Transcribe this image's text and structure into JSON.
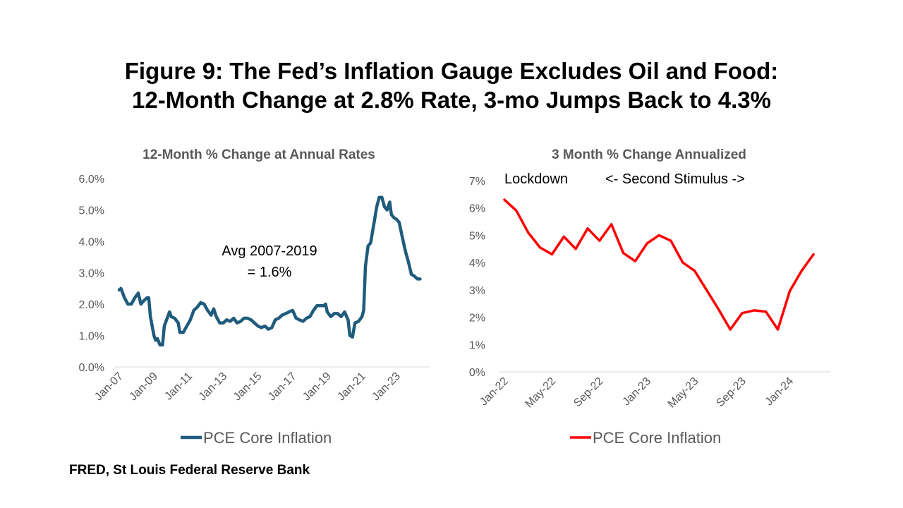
{
  "title": {
    "line1": "Figure 9: The Fed’s Inflation Gauge Excludes Oil and Food:",
    "line2": "12-Month Change at 2.8% Rate, 3-mo Jumps Back to 4.3%"
  },
  "source": "FRED, St Louis Federal Reserve Bank",
  "chart_data": [
    {
      "type": "line",
      "title": "12-Month % Change at Annual Rates",
      "xlabel": "",
      "ylabel": "",
      "ylim": [
        0,
        6
      ],
      "y_ticks": [
        "0.0%",
        "1.0%",
        "2.0%",
        "3.0%",
        "4.0%",
        "5.0%",
        "6.0%"
      ],
      "x_range": [
        2007.0,
        2024.7
      ],
      "x_tick_labels": [
        {
          "label": "Jan-07",
          "x": 2007
        },
        {
          "label": "Jan-09",
          "x": 2009
        },
        {
          "label": "Jan-11",
          "x": 2011
        },
        {
          "label": "Jan-13",
          "x": 2013
        },
        {
          "label": "Jan-15",
          "x": 2015
        },
        {
          "label": "Jan-17",
          "x": 2017
        },
        {
          "label": "Jan-19",
          "x": 2019
        },
        {
          "label": "Jan-21",
          "x": 2021
        },
        {
          "label": "Jan-23",
          "x": 2023
        }
      ],
      "annotation": [
        "Avg 2007-2019",
        "= 1.6%"
      ],
      "series": [
        {
          "name": "PCE Core Inflation",
          "color": "#1f5b7c",
          "points": [
            [
              2007.0,
              2.45
            ],
            [
              2007.1,
              2.5
            ],
            [
              2007.3,
              2.2
            ],
            [
              2007.5,
              2.0
            ],
            [
              2007.7,
              2.0
            ],
            [
              2007.9,
              2.2
            ],
            [
              2008.1,
              2.35
            ],
            [
              2008.25,
              2.0
            ],
            [
              2008.4,
              2.1
            ],
            [
              2008.6,
              2.2
            ],
            [
              2008.7,
              2.2
            ],
            [
              2008.8,
              1.6
            ],
            [
              2008.9,
              1.3
            ],
            [
              2009.0,
              1.0
            ],
            [
              2009.1,
              0.85
            ],
            [
              2009.2,
              0.9
            ],
            [
              2009.35,
              0.7
            ],
            [
              2009.5,
              0.7
            ],
            [
              2009.6,
              1.3
            ],
            [
              2009.8,
              1.6
            ],
            [
              2009.9,
              1.75
            ],
            [
              2010.0,
              1.6
            ],
            [
              2010.2,
              1.55
            ],
            [
              2010.4,
              1.4
            ],
            [
              2010.5,
              1.1
            ],
            [
              2010.7,
              1.1
            ],
            [
              2010.9,
              1.3
            ],
            [
              2011.1,
              1.5
            ],
            [
              2011.3,
              1.8
            ],
            [
              2011.5,
              1.9
            ],
            [
              2011.7,
              2.05
            ],
            [
              2011.9,
              2.0
            ],
            [
              2012.1,
              1.8
            ],
            [
              2012.3,
              1.65
            ],
            [
              2012.45,
              1.85
            ],
            [
              2012.6,
              1.6
            ],
            [
              2012.8,
              1.4
            ],
            [
              2013.0,
              1.4
            ],
            [
              2013.2,
              1.5
            ],
            [
              2013.4,
              1.45
            ],
            [
              2013.6,
              1.55
            ],
            [
              2013.8,
              1.4
            ],
            [
              2014.0,
              1.45
            ],
            [
              2014.2,
              1.55
            ],
            [
              2014.4,
              1.55
            ],
            [
              2014.6,
              1.5
            ],
            [
              2014.8,
              1.4
            ],
            [
              2015.0,
              1.3
            ],
            [
              2015.2,
              1.25
            ],
            [
              2015.4,
              1.3
            ],
            [
              2015.6,
              1.2
            ],
            [
              2015.8,
              1.25
            ],
            [
              2016.0,
              1.5
            ],
            [
              2016.2,
              1.55
            ],
            [
              2016.4,
              1.65
            ],
            [
              2016.6,
              1.7
            ],
            [
              2016.8,
              1.75
            ],
            [
              2017.0,
              1.8
            ],
            [
              2017.2,
              1.55
            ],
            [
              2017.4,
              1.5
            ],
            [
              2017.6,
              1.45
            ],
            [
              2017.8,
              1.55
            ],
            [
              2018.0,
              1.6
            ],
            [
              2018.2,
              1.8
            ],
            [
              2018.4,
              1.95
            ],
            [
              2018.6,
              1.95
            ],
            [
              2018.8,
              1.95
            ],
            [
              2018.9,
              2.0
            ],
            [
              2019.0,
              1.75
            ],
            [
              2019.2,
              1.6
            ],
            [
              2019.4,
              1.7
            ],
            [
              2019.6,
              1.7
            ],
            [
              2019.8,
              1.6
            ],
            [
              2020.0,
              1.75
            ],
            [
              2020.2,
              1.5
            ],
            [
              2020.3,
              1.0
            ],
            [
              2020.45,
              0.95
            ],
            [
              2020.6,
              1.4
            ],
            [
              2020.8,
              1.45
            ],
            [
              2021.0,
              1.6
            ],
            [
              2021.1,
              1.8
            ],
            [
              2021.2,
              3.2
            ],
            [
              2021.35,
              3.85
            ],
            [
              2021.5,
              3.95
            ],
            [
              2021.7,
              4.6
            ],
            [
              2021.85,
              5.1
            ],
            [
              2022.0,
              5.4
            ],
            [
              2022.15,
              5.4
            ],
            [
              2022.3,
              5.1
            ],
            [
              2022.45,
              5.0
            ],
            [
              2022.6,
              5.25
            ],
            [
              2022.7,
              4.85
            ],
            [
              2022.85,
              4.75
            ],
            [
              2023.0,
              4.7
            ],
            [
              2023.15,
              4.6
            ],
            [
              2023.3,
              4.2
            ],
            [
              2023.5,
              3.7
            ],
            [
              2023.7,
              3.3
            ],
            [
              2023.85,
              2.95
            ],
            [
              2024.0,
              2.9
            ],
            [
              2024.2,
              2.8
            ],
            [
              2024.35,
              2.8
            ]
          ]
        }
      ],
      "legend": "bottom"
    },
    {
      "type": "line",
      "title": "3 Month % Change Annualized",
      "xlabel": "",
      "ylabel": "",
      "ylim": [
        0,
        7
      ],
      "y_ticks": [
        "0%",
        "1%",
        "2%",
        "3%",
        "4%",
        "5%",
        "6%",
        "7%"
      ],
      "x_range": [
        0,
        27
      ],
      "x_tick_labels": [
        {
          "label": "Jan-22",
          "x": 0
        },
        {
          "label": "May-22",
          "x": 4
        },
        {
          "label": "Sep-22",
          "x": 8
        },
        {
          "label": "Jan-23",
          "x": 12
        },
        {
          "label": "May-23",
          "x": 16
        },
        {
          "label": "Sep-23",
          "x": 20
        },
        {
          "label": "Jan-24",
          "x": 24
        }
      ],
      "annotations": [
        "Lockdown",
        "<- Second Stimulus ->"
      ],
      "series": [
        {
          "name": "PCE Core Inflation",
          "color": "#ff0000",
          "points": [
            [
              0,
              6.3
            ],
            [
              1,
              5.9
            ],
            [
              2,
              5.1
            ],
            [
              3,
              4.55
            ],
            [
              4,
              4.3
            ],
            [
              5,
              4.95
            ],
            [
              6,
              4.5
            ],
            [
              7,
              5.25
            ],
            [
              8,
              4.8
            ],
            [
              9,
              5.4
            ],
            [
              10,
              4.35
            ],
            [
              11,
              4.05
            ],
            [
              12,
              4.7
            ],
            [
              13,
              5.0
            ],
            [
              14,
              4.8
            ],
            [
              15,
              4.0
            ],
            [
              16,
              3.7
            ],
            [
              17,
              3.0
            ],
            [
              18,
              2.3
            ],
            [
              19,
              1.55
            ],
            [
              20,
              2.15
            ],
            [
              21,
              2.25
            ],
            [
              22,
              2.2
            ],
            [
              23,
              1.55
            ],
            [
              24,
              2.95
            ],
            [
              25,
              3.7
            ],
            [
              26,
              4.3
            ]
          ]
        }
      ],
      "legend": "bottom"
    }
  ]
}
